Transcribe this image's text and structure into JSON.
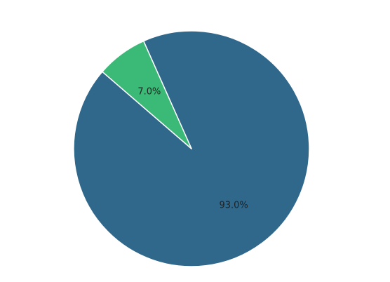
{
  "chart_data": {
    "type": "pie",
    "slices": [
      {
        "value": 93.0,
        "label": "93.0%",
        "color": "#30688c"
      },
      {
        "value": 7.0,
        "label": "7.0%",
        "color": "#3aba76"
      }
    ],
    "legend": "none"
  }
}
